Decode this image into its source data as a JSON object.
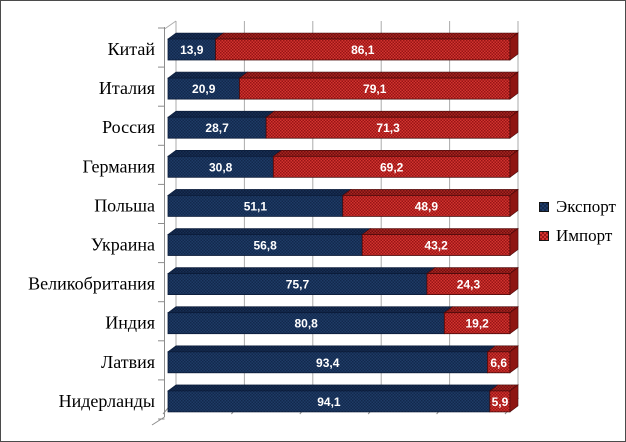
{
  "frame": {
    "background": "#ffffff",
    "border_color": "#4b4b4b"
  },
  "chart_data": {
    "type": "bar",
    "orientation": "horizontal",
    "stacked": true,
    "style": "3d",
    "title": "",
    "xlabel": "",
    "ylabel": "",
    "xlim": [
      0,
      100
    ],
    "gridline_values": [
      0,
      20,
      40,
      60,
      80,
      100
    ],
    "axis_tick_labels_visible": false,
    "legend_position": "right",
    "grid_color": "#ABABAB",
    "axis_color": "#8C8C8C",
    "value_label_color": "#FFFFFF",
    "category_label_color": "#000000",
    "categories": [
      "Китай",
      "Италия",
      "Россия",
      "Германия",
      "Польша",
      "Украина",
      "Великобритания",
      "Индия",
      "Латвия",
      "Нидерланды"
    ],
    "series": [
      {
        "name": "Экспорт",
        "values": [
          13.9,
          20.9,
          28.7,
          30.8,
          51.1,
          56.8,
          75.7,
          80.8,
          93.4,
          94.1
        ],
        "value_labels": [
          "13,9",
          "20,9",
          "28,7",
          "30,8",
          "51,1",
          "56,8",
          "75,7",
          "80,8",
          "93,4",
          "94,1"
        ],
        "color": "#1F3B66",
        "texture_dot": "#12284C",
        "top_color": "#182F54",
        "top_dot": "#0D1E3C",
        "edge": "#0A1B38"
      },
      {
        "name": "Импорт",
        "values": [
          86.1,
          79.1,
          71.3,
          69.2,
          48.9,
          43.2,
          24.3,
          19.2,
          6.6,
          5.9
        ],
        "value_labels": [
          "86,1",
          "79,1",
          "71,3",
          "69,2",
          "48,9",
          "43,2",
          "24,3",
          "19,2",
          "6,6",
          "5,9"
        ],
        "color": "#D23430",
        "texture_dot": "#971414",
        "top_color": "#A82521",
        "top_dot": "#700E0E",
        "edge": "#4A0A0A",
        "end_cap": "#8E1512"
      }
    ]
  }
}
